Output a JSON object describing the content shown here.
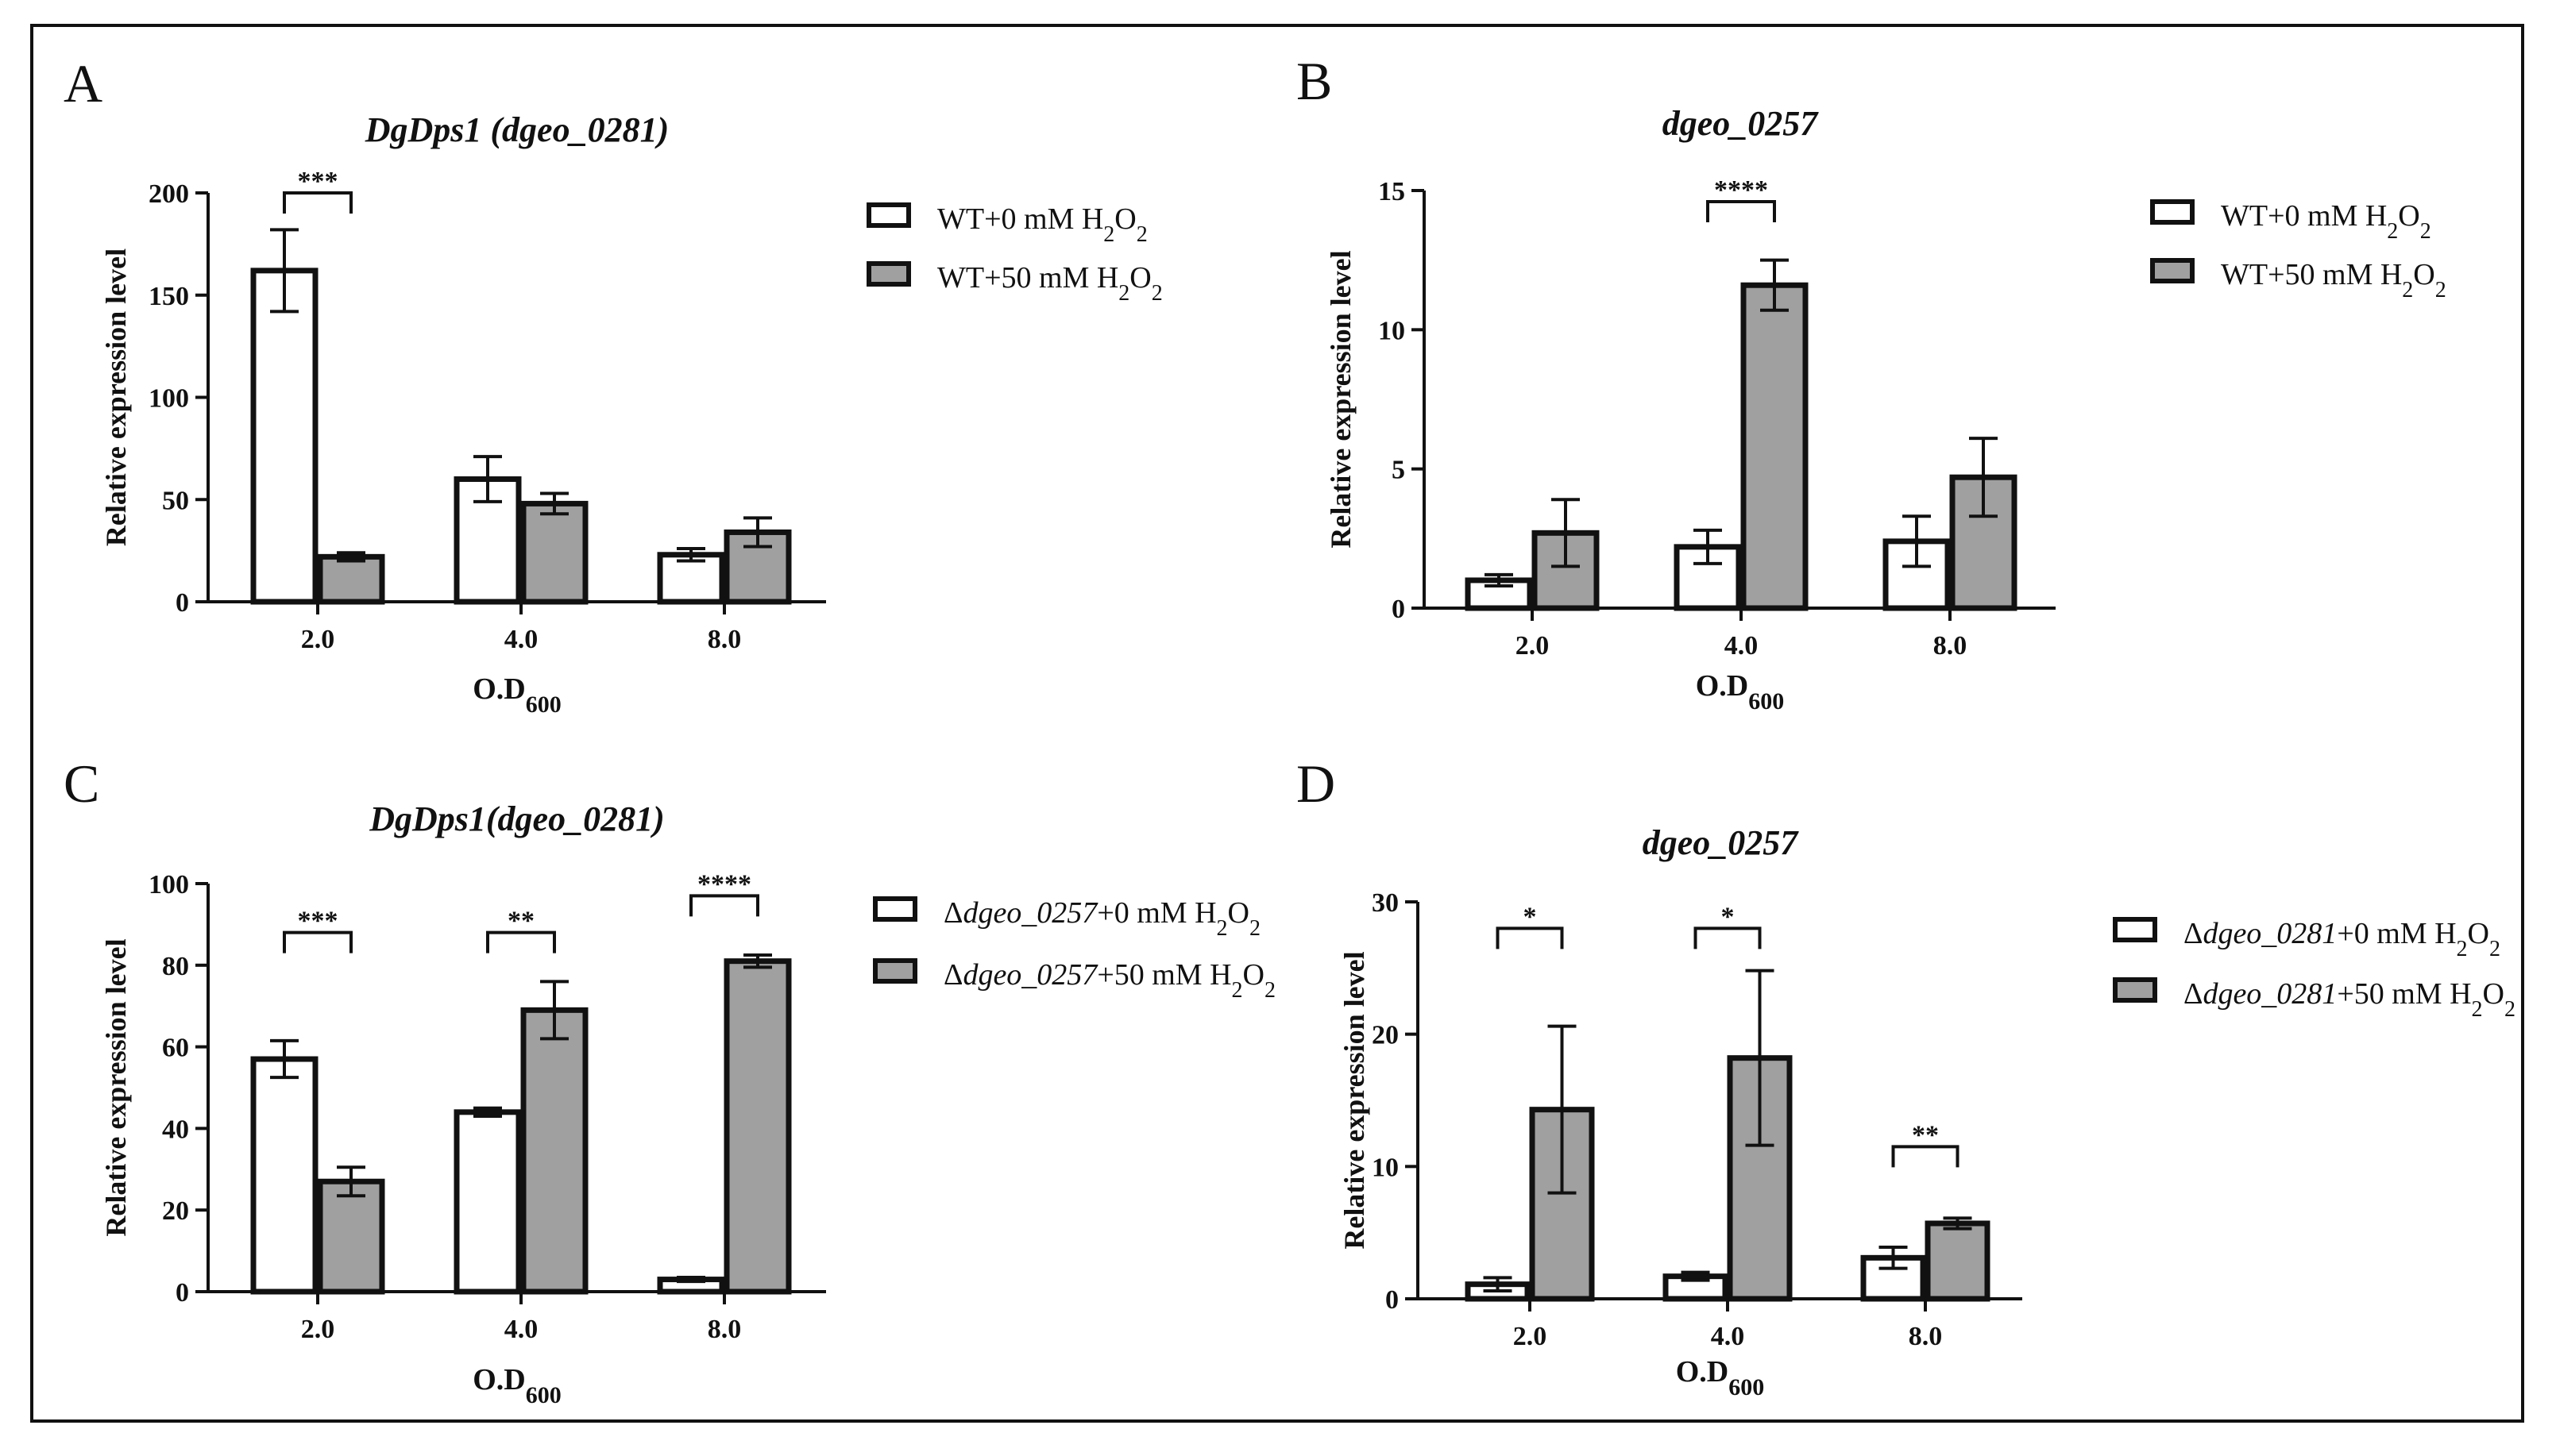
{
  "chart_data": [
    {
      "id": "A",
      "type": "bar",
      "panel_label": "A",
      "title": "DgDps1 (dgeo_0281)",
      "categories": [
        "2.0",
        "4.0",
        "8.0"
      ],
      "xlabel_main": "O.D",
      "xlabel_sub": "600",
      "ylabel": "Relative expression level",
      "ylim": [
        0,
        200
      ],
      "yticks": [
        "0",
        "50",
        "100",
        "150",
        "200"
      ],
      "series": [
        {
          "name": "WT+0 mM H2O2",
          "legend": {
            "prefix": "",
            "italic": "",
            "suffix": "WT+0 mM H",
            "tail": "O"
          },
          "values": [
            162,
            60,
            23
          ],
          "errors": [
            20,
            11,
            3
          ]
        },
        {
          "name": "WT+50 mM H2O2",
          "legend": {
            "prefix": "",
            "italic": "",
            "suffix": "WT+50 mM H",
            "tail": "O"
          },
          "values": [
            22,
            48,
            34
          ],
          "errors": [
            2,
            5,
            7
          ]
        }
      ],
      "significance": [
        {
          "category": "2.0",
          "label": "***",
          "y": 200
        }
      ]
    },
    {
      "id": "B",
      "type": "bar",
      "panel_label": "B",
      "title": "dgeo_0257",
      "categories": [
        "2.0",
        "4.0",
        "8.0"
      ],
      "xlabel_main": "O.D",
      "xlabel_sub": "600",
      "ylabel": "Relative expression level",
      "ylim": [
        0,
        15
      ],
      "yticks": [
        "0",
        "5",
        "10",
        "15"
      ],
      "series": [
        {
          "name": "WT+0 mM H2O2",
          "legend": {
            "prefix": "",
            "italic": "",
            "suffix": "WT+0 mM H",
            "tail": "O"
          },
          "values": [
            1.0,
            2.2,
            2.4
          ],
          "errors": [
            0.2,
            0.6,
            0.9
          ]
        },
        {
          "name": "WT+50 mM H2O2",
          "legend": {
            "prefix": "",
            "italic": "",
            "suffix": "WT+50 mM H",
            "tail": "O"
          },
          "values": [
            2.7,
            11.6,
            4.7
          ],
          "errors": [
            1.2,
            0.9,
            1.4
          ]
        }
      ],
      "significance": [
        {
          "category": "4.0",
          "label": "****",
          "y": 14.6
        }
      ]
    },
    {
      "id": "C",
      "type": "bar",
      "panel_label": "C",
      "title": "DgDps1(dgeo_0281)",
      "categories": [
        "2.0",
        "4.0",
        "8.0"
      ],
      "xlabel_main": "O.D",
      "xlabel_sub": "600",
      "ylabel": "Relative expression level",
      "ylim": [
        0,
        100
      ],
      "yticks": [
        "0",
        "20",
        "40",
        "60",
        "80",
        "100"
      ],
      "series": [
        {
          "name": "Δdgeo_0257+0 mM H2O2",
          "legend": {
            "prefix": "Δ",
            "italic": "dgeo_0257",
            "suffix": "+0 mM H",
            "tail": "O"
          },
          "values": [
            57,
            44,
            3
          ],
          "errors": [
            4.5,
            1,
            0.5
          ]
        },
        {
          "name": "Δdgeo_0257+50 mM H2O2",
          "legend": {
            "prefix": "Δ",
            "italic": "dgeo_0257",
            "suffix": "+50 mM H",
            "tail": "O"
          },
          "values": [
            27,
            69,
            81
          ],
          "errors": [
            3.5,
            7,
            1.5
          ]
        }
      ],
      "significance": [
        {
          "category": "2.0",
          "label": "***",
          "y": 88
        },
        {
          "category": "4.0",
          "label": "**",
          "y": 88
        },
        {
          "category": "8.0",
          "label": "****",
          "y": 97
        }
      ]
    },
    {
      "id": "D",
      "type": "bar",
      "panel_label": "D",
      "title": "dgeo_0257",
      "categories": [
        "2.0",
        "4.0",
        "8.0"
      ],
      "xlabel_main": "O.D",
      "xlabel_sub": "600",
      "ylabel": "Relative expression level",
      "ylim": [
        0,
        30
      ],
      "yticks": [
        "0",
        "10",
        "20",
        "30"
      ],
      "series": [
        {
          "name": "Δdgeo_0281+0 mM H2O2",
          "legend": {
            "prefix": "Δ",
            "italic": "dgeo_0281",
            "suffix": "+0 mM H",
            "tail": "O"
          },
          "values": [
            1.1,
            1.7,
            3.1
          ],
          "errors": [
            0.5,
            0.3,
            0.8
          ]
        },
        {
          "name": "Δdgeo_0281+50 mM H2O2",
          "legend": {
            "prefix": "Δ",
            "italic": "dgeo_0281",
            "suffix": "+50 mM H",
            "tail": "O"
          },
          "values": [
            14.3,
            18.2,
            5.7
          ],
          "errors": [
            6.3,
            6.6,
            0.4
          ]
        }
      ],
      "significance": [
        {
          "category": "2.0",
          "label": "*",
          "y": 28
        },
        {
          "category": "4.0",
          "label": "*",
          "y": 28
        },
        {
          "category": "8.0",
          "label": "**",
          "y": 11.5
        }
      ]
    }
  ],
  "colors": {
    "series_0_fill": "#ffffff",
    "series_1_fill": "#a0a0a0",
    "stroke": "#111111"
  }
}
